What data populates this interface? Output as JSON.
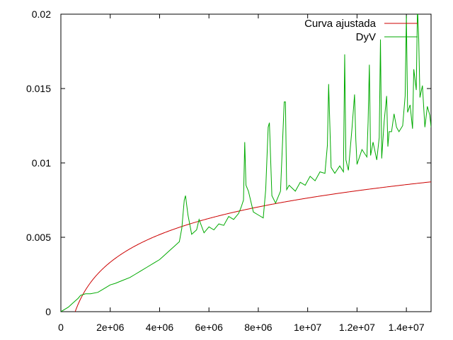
{
  "chart_data": {
    "type": "line",
    "title": "",
    "xlabel": "",
    "ylabel": "",
    "xlim": [
      0,
      15000000
    ],
    "ylim": [
      0,
      0.02
    ],
    "x_ticks": [
      {
        "value": 0,
        "label": "0"
      },
      {
        "value": 2000000,
        "label": "2e+06"
      },
      {
        "value": 4000000,
        "label": "4e+06"
      },
      {
        "value": 6000000,
        "label": "6e+06"
      },
      {
        "value": 8000000,
        "label": "8e+06"
      },
      {
        "value": 10000000,
        "label": "1e+07"
      },
      {
        "value": 12000000,
        "label": "1.2e+07"
      },
      {
        "value": 14000000,
        "label": "1.4e+07"
      }
    ],
    "y_ticks": [
      {
        "value": 0,
        "label": "0"
      },
      {
        "value": 0.005,
        "label": "0.005"
      },
      {
        "value": 0.01,
        "label": "0.01"
      },
      {
        "value": 0.015,
        "label": "0.015"
      },
      {
        "value": 0.02,
        "label": "0.02"
      }
    ],
    "grid": false,
    "legend_position": "top-right",
    "series": [
      {
        "name": "Curva ajustada",
        "color": "#cc0000",
        "function": "log",
        "params": {
          "a": 0.002683,
          "x0": 580000
        },
        "x": [
          580000,
          700000,
          1000000,
          1500000,
          2000000,
          3000000,
          4000000,
          5000000,
          6000000,
          7000000,
          8000000,
          9000000,
          10000000,
          11000000,
          12000000,
          13000000,
          14000000,
          15000000
        ],
        "values": [
          0.0,
          0.0005,
          0.0015,
          0.0025,
          0.0033,
          0.0044,
          0.0052,
          0.0058,
          0.0063,
          0.0072,
          0.0078,
          0.0083,
          0.0088,
          0.0092,
          0.0095,
          0.0099,
          0.0102,
          0.0104
        ]
      },
      {
        "name": "DyV",
        "color": "#00aa00",
        "x": [
          0,
          300000,
          500000,
          700000,
          800000,
          1000000,
          1200000,
          1500000,
          1800000,
          2000000,
          2200000,
          2500000,
          2800000,
          3000000,
          3200000,
          3500000,
          3800000,
          4000000,
          4200000,
          4400000,
          4600000,
          4800000,
          4900000,
          5000000,
          5050000,
          5150000,
          5300000,
          5500000,
          5600000,
          5800000,
          6000000,
          6200000,
          6400000,
          6600000,
          6800000,
          7000000,
          7200000,
          7300000,
          7400000,
          7450000,
          7500000,
          7600000,
          7700000,
          7800000,
          8000000,
          8200000,
          8300000,
          8400000,
          8450000,
          8550000,
          8700000,
          8900000,
          9050000,
          9100000,
          9150000,
          9250000,
          9500000,
          9700000,
          9900000,
          10100000,
          10300000,
          10500000,
          10700000,
          10800000,
          10850000,
          10950000,
          11100000,
          11300000,
          11450000,
          11500000,
          11550000,
          11650000,
          11800000,
          11900000,
          11950000,
          12000000,
          12200000,
          12400000,
          12450000,
          12500000,
          12550000,
          12650000,
          12800000,
          12900000,
          12950000,
          13000000,
          13100000,
          13200000,
          13250000,
          13300000,
          13400000,
          13500000,
          13600000,
          13700000,
          13850000,
          13950000,
          14000000,
          14050000,
          14150000,
          14250000,
          14300000,
          14400000,
          14450000,
          14500000,
          14550000,
          14650000,
          14750000,
          14850000,
          14950000,
          15000000
        ],
        "values": [
          0.0,
          0.0003,
          0.0006,
          0.0009,
          0.0011,
          0.0012,
          0.0012,
          0.0013,
          0.0016,
          0.0018,
          0.0019,
          0.0021,
          0.0023,
          0.0025,
          0.0027,
          0.003,
          0.0033,
          0.0035,
          0.0038,
          0.0041,
          0.0044,
          0.0047,
          0.0056,
          0.0075,
          0.0078,
          0.0065,
          0.0052,
          0.0055,
          0.0062,
          0.0053,
          0.0057,
          0.0055,
          0.0059,
          0.0058,
          0.0064,
          0.0062,
          0.0066,
          0.007,
          0.0075,
          0.0114,
          0.0085,
          0.0081,
          0.0074,
          0.0067,
          0.0065,
          0.0063,
          0.0082,
          0.0124,
          0.0127,
          0.0078,
          0.0073,
          0.0081,
          0.0141,
          0.0141,
          0.0082,
          0.0085,
          0.0081,
          0.0087,
          0.0085,
          0.0091,
          0.0088,
          0.0094,
          0.0093,
          0.0112,
          0.0153,
          0.0097,
          0.0093,
          0.0098,
          0.0094,
          0.0173,
          0.0102,
          0.0095,
          0.0124,
          0.0146,
          0.0116,
          0.0099,
          0.0109,
          0.0104,
          0.0128,
          0.0166,
          0.0105,
          0.0114,
          0.0102,
          0.0117,
          0.0183,
          0.0103,
          0.0128,
          0.0145,
          0.0111,
          0.0121,
          0.0121,
          0.0133,
          0.0124,
          0.0121,
          0.0125,
          0.0145,
          0.0199,
          0.0134,
          0.0139,
          0.0123,
          0.0163,
          0.0149,
          0.0205,
          0.0183,
          0.0144,
          0.0152,
          0.0124,
          0.0138,
          0.0132,
          0.0124
        ]
      }
    ]
  }
}
